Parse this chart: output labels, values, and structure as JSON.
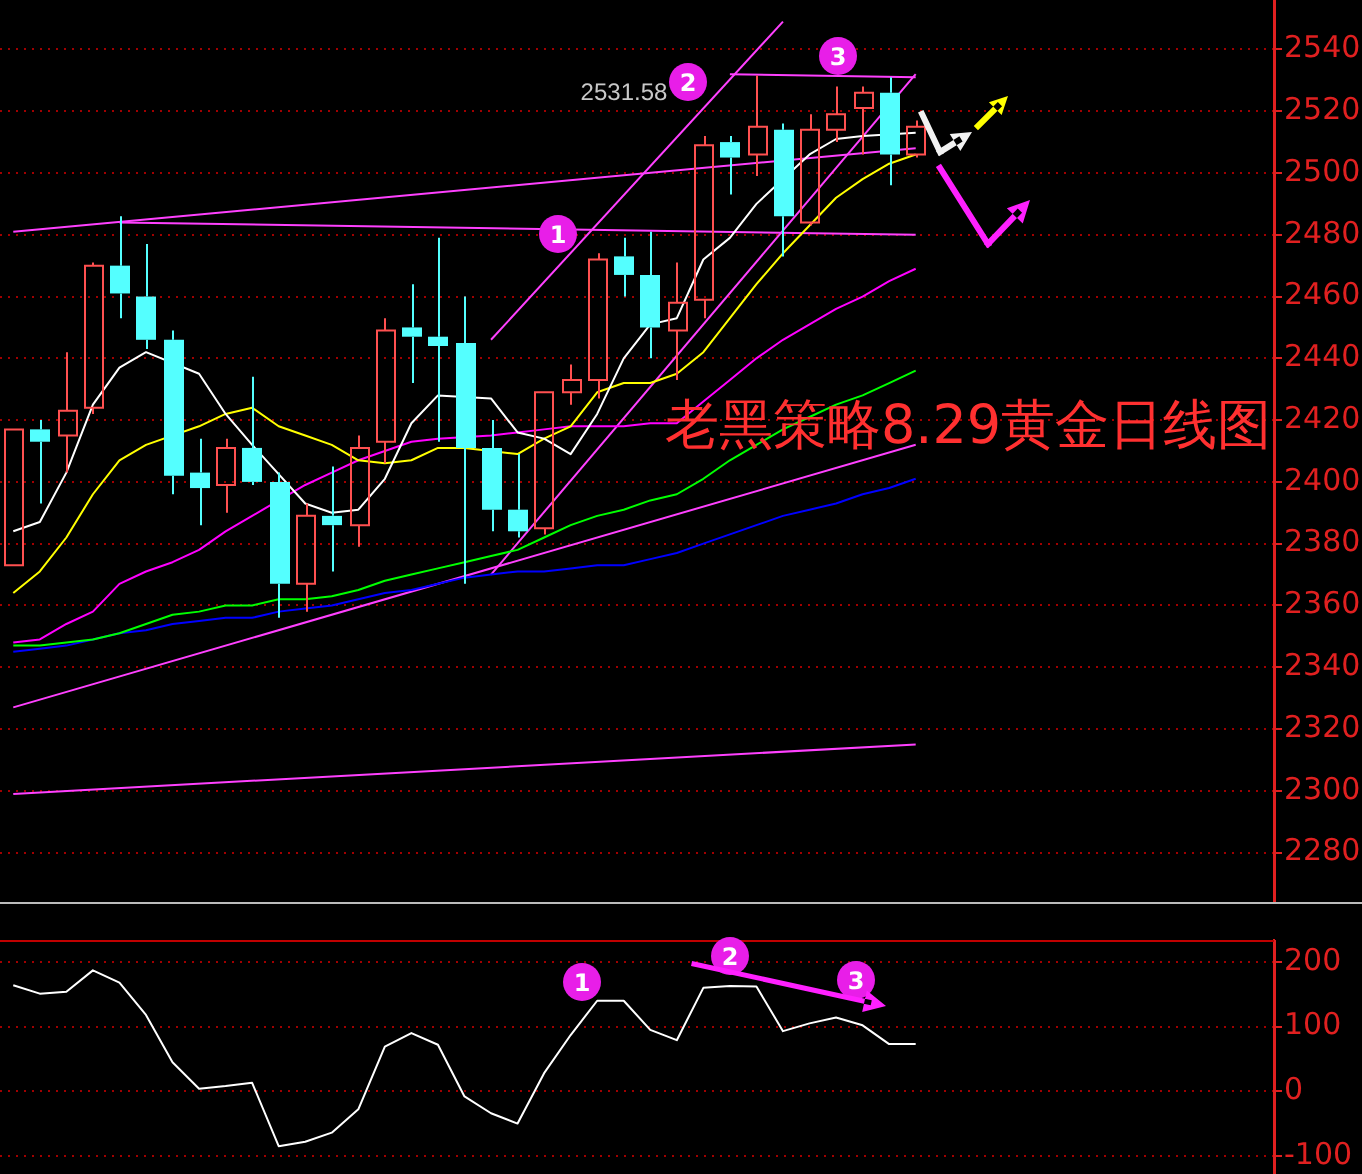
{
  "chart_data": [
    {
      "type": "candlestick",
      "categories": [
        null,
        null,
        null,
        null,
        null,
        null,
        null,
        null,
        null,
        null,
        null,
        null,
        null,
        null,
        null,
        null,
        null,
        null,
        null,
        null,
        null,
        null,
        null,
        null,
        null,
        null,
        null,
        null,
        null,
        null,
        null,
        null,
        null,
        null,
        null
      ],
      "ohlc": [
        [
          2373,
          2417,
          2373,
          2417
        ],
        [
          2417,
          2420,
          2393,
          2413
        ],
        [
          2415,
          2442,
          2403,
          2423
        ],
        [
          2424,
          2471,
          2422,
          2470
        ],
        [
          2470,
          2486,
          2453,
          2461
        ],
        [
          2460,
          2477,
          2443,
          2446
        ],
        [
          2446,
          2449,
          2396,
          2402
        ],
        [
          2403,
          2414,
          2386,
          2398
        ],
        [
          2399,
          2414,
          2390,
          2411
        ],
        [
          2411,
          2434,
          2399,
          2400
        ],
        [
          2400,
          2403,
          2356,
          2367
        ],
        [
          2367,
          2393,
          2358,
          2389
        ],
        [
          2389,
          2405,
          2371,
          2386
        ],
        [
          2386,
          2415,
          2379,
          2411
        ],
        [
          2413,
          2453,
          2406,
          2449
        ],
        [
          2450,
          2464,
          2432,
          2447
        ],
        [
          2447,
          2479,
          2413,
          2444
        ],
        [
          2445,
          2460,
          2367,
          2411
        ],
        [
          2411,
          2420,
          2384,
          2391
        ],
        [
          2391,
          2409,
          2382,
          2384
        ],
        [
          2385,
          2429,
          2383,
          2429
        ],
        [
          2429,
          2438,
          2425,
          2433
        ],
        [
          2433,
          2474,
          2427,
          2472
        ],
        [
          2473,
          2479,
          2460,
          2467
        ],
        [
          2467,
          2481,
          2440,
          2450
        ],
        [
          2449,
          2471,
          2433,
          2458
        ],
        [
          2459,
          2512,
          2453,
          2509
        ],
        [
          2510,
          2512,
          2493,
          2505
        ],
        [
          2506,
          2531.58,
          2499,
          2515
        ],
        [
          2514,
          2516,
          2473,
          2486
        ],
        [
          2484,
          2519,
          2483,
          2514
        ],
        [
          2514,
          2528,
          2510,
          2519
        ],
        [
          2521,
          2528,
          2506,
          2526
        ],
        [
          2526,
          2531,
          2496,
          2506
        ],
        [
          2506,
          2517,
          2505,
          2515
        ]
      ],
      "colors": [
        "#ff5050",
        "#54ffff",
        "#ff5050",
        "#ff5050",
        "#54ffff",
        "#54ffff",
        "#54ffff",
        "#54ffff",
        "#ff5050",
        "#54ffff",
        "#54ffff",
        "#ff5050",
        "#54ffff",
        "#ff5050",
        "#ff5050",
        "#54ffff",
        "#54ffff",
        "#54ffff",
        "#54ffff",
        "#54ffff",
        "#ff5050",
        "#ff5050",
        "#ff5050",
        "#54ffff",
        "#54ffff",
        "#ff5050",
        "#ff5050",
        "#54ffff",
        "#ff5050",
        "#54ffff",
        "#ff5050",
        "#ff5050",
        "#ff5050",
        "#54ffff",
        "#ff5050"
      ],
      "series": [
        {
          "type": "line",
          "color": "#ffffff",
          "values": [
            2384,
            2387,
            2403,
            2425,
            2437,
            2442,
            null,
            2435,
            2422,
            2412,
            null,
            2393,
            2390,
            2391,
            2401,
            2419,
            2428,
            null,
            2427,
            2416,
            2414,
            2409,
            2422,
            2440,
            2451,
            2453,
            2472,
            2479,
            2490,
            null,
            2506,
            2511,
            2512,
            null,
            2513
          ]
        },
        {
          "type": "line",
          "color": "#ffff00",
          "values": [
            2364,
            2371,
            2382,
            2396,
            2407,
            2412,
            null,
            2418,
            2422,
            2424,
            2418,
            2415,
            2412,
            2407,
            2406,
            2407,
            2411,
            2411,
            null,
            2409,
            2414,
            2418,
            2429,
            2432,
            2432,
            2435,
            2442,
            2453,
            2464,
            2474,
            2483,
            2492,
            2498,
            2503,
            2506
          ]
        },
        {
          "type": "line",
          "color": "#ff00ff",
          "values": [
            2348,
            2349,
            2354,
            2358,
            2367,
            2371,
            2374,
            2378,
            2384,
            2389,
            null,
            2399,
            2403,
            2407,
            2410,
            2413,
            2414,
            null,
            2415,
            2416,
            2417,
            2418,
            2418,
            2418,
            2419,
            2419,
            2426,
            2433,
            2440,
            2446,
            2451,
            2456,
            2460,
            2465,
            2469
          ]
        },
        {
          "type": "line",
          "color": "#00ff00",
          "values": [
            2347,
            2347,
            2348,
            2349,
            2351,
            2354,
            2357,
            2358,
            2360,
            2360,
            2362,
            2362,
            2363,
            2365,
            2368,
            2370,
            2372,
            2374,
            2376,
            2378,
            2382,
            2386,
            2389,
            2391,
            2394,
            2396,
            2401,
            2407,
            2412,
            2417,
            2421,
            2425,
            2428,
            2432,
            2436
          ]
        },
        {
          "type": "line",
          "color": "#0000ff",
          "values": [
            2345,
            2346,
            2347,
            2349,
            2351,
            2352,
            2354,
            2355,
            2356,
            2356,
            2358,
            2359,
            2360,
            2362,
            2364,
            2365,
            2367,
            2369,
            2370,
            2371,
            2371,
            2372,
            2373,
            2373,
            2375,
            2377,
            2380,
            2383,
            2386,
            2389,
            2391,
            2393,
            2396,
            2398,
            2401
          ]
        },
        {
          "type": "line",
          "color": "#ff40ff",
          "values": [
            2481,
            null,
            null,
            null,
            null,
            null,
            null,
            null,
            null,
            null,
            null,
            null,
            null,
            null,
            null,
            null,
            null,
            null,
            null,
            null,
            null,
            null,
            null,
            null,
            null,
            null,
            null,
            null,
            null,
            null,
            null,
            null,
            null,
            null,
            2508
          ]
        },
        {
          "type": "line",
          "color": "#ff40ff",
          "values": [
            null,
            null,
            null,
            null,
            2484,
            null,
            null,
            null,
            null,
            null,
            null,
            null,
            null,
            null,
            null,
            null,
            null,
            null,
            null,
            null,
            null,
            null,
            null,
            null,
            null,
            null,
            null,
            null,
            null,
            null,
            null,
            null,
            null,
            null,
            2480
          ]
        },
        {
          "type": "line",
          "color": "#ff40ff",
          "values": [
            null,
            null,
            null,
            null,
            null,
            null,
            null,
            null,
            null,
            null,
            null,
            null,
            null,
            null,
            null,
            null,
            null,
            null,
            null,
            null,
            null,
            null,
            null,
            null,
            null,
            null,
            null,
            2532,
            null,
            null,
            null,
            null,
            null,
            null,
            2531
          ]
        },
        {
          "type": "line",
          "color": "#ff40ff",
          "values": [
            null,
            null,
            null,
            null,
            null,
            null,
            null,
            null,
            null,
            null,
            null,
            null,
            null,
            null,
            null,
            null,
            null,
            null,
            2446,
            null,
            null,
            null,
            null,
            null,
            null,
            null,
            null,
            null,
            null,
            2549,
            null,
            null,
            null,
            null,
            null
          ]
        },
        {
          "type": "line",
          "color": "#ff40ff",
          "values": [
            null,
            null,
            null,
            null,
            null,
            null,
            null,
            null,
            null,
            null,
            null,
            null,
            null,
            null,
            null,
            null,
            null,
            null,
            2370,
            null,
            null,
            null,
            null,
            null,
            null,
            null,
            null,
            null,
            null,
            null,
            null,
            null,
            null,
            null,
            2532
          ]
        },
        {
          "type": "line",
          "color": "#ff40ff",
          "values": [
            2327,
            null,
            null,
            null,
            null,
            null,
            null,
            null,
            null,
            null,
            null,
            null,
            null,
            null,
            null,
            null,
            null,
            null,
            null,
            null,
            null,
            null,
            null,
            null,
            null,
            null,
            null,
            null,
            null,
            null,
            null,
            null,
            null,
            null,
            2412
          ]
        },
        {
          "type": "line",
          "color": "#ff40ff",
          "values": [
            2299,
            null,
            null,
            null,
            null,
            null,
            null,
            null,
            null,
            null,
            null,
            null,
            null,
            null,
            null,
            null,
            null,
            null,
            null,
            null,
            null,
            null,
            null,
            null,
            null,
            null,
            null,
            null,
            null,
            null,
            null,
            null,
            null,
            null,
            2315
          ]
        }
      ],
      "ylim": [
        2264,
        2556
      ],
      "yticks": [
        2280,
        2300,
        2320,
        2340,
        2360,
        2380,
        2400,
        2420,
        2440,
        2460,
        2480,
        2500,
        2520,
        2540
      ],
      "grid": "y",
      "legend": false,
      "tick_labels": "y",
      "marker": "none",
      "annotations": [
        "2531.58",
        "1",
        "2",
        "3",
        "老黑策略8.29黄金日线图"
      ]
    },
    {
      "type": "line",
      "categories": [
        null,
        null,
        null,
        null,
        null,
        null,
        null,
        null,
        null,
        null,
        null,
        null,
        null,
        null,
        null,
        null,
        null,
        null,
        null,
        null,
        null,
        null,
        null,
        null,
        null,
        null,
        null,
        null,
        null,
        null,
        null,
        null,
        null,
        null,
        null
      ],
      "series": [
        {
          "color": "#ffffff",
          "values": [
            164,
            151,
            154,
            187,
            168,
            118,
            45,
            4,
            8,
            13,
            -85,
            -78,
            -64,
            -28,
            69,
            90,
            72,
            -8,
            -34,
            -50,
            28,
            87,
            140,
            140,
            95,
            79,
            160,
            163,
            162,
            93,
            105,
            114,
            102,
            73,
            73
          ]
        }
      ],
      "ylim": [
        -128,
        234
      ],
      "yticks": [
        -100,
        0,
        100,
        200
      ],
      "grid": "y",
      "legend": false,
      "tick_labels": "y",
      "marker": "none",
      "annotations": [
        "1",
        "2",
        "3"
      ]
    }
  ]
}
